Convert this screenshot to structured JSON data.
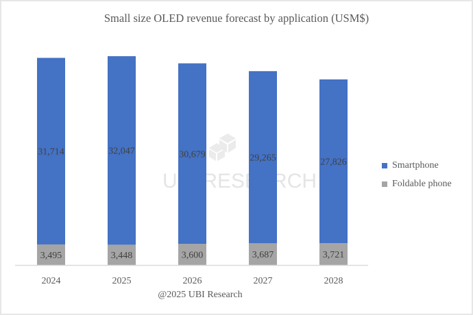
{
  "chart_data": {
    "type": "bar",
    "stacked": true,
    "title": "Small size OLED revenue forecast by application (USM$)",
    "xlabel": "",
    "ylabel": "",
    "categories": [
      "2024",
      "2025",
      "2026",
      "2027",
      "2028"
    ],
    "series": [
      {
        "name": "Foldable phone",
        "color": "#a5a5a5",
        "values": [
          3495,
          3448,
          3600,
          3687,
          3721
        ],
        "labels": [
          "3,495",
          "3,448",
          "3,600",
          "3,687",
          "3,721"
        ]
      },
      {
        "name": "Smartphone",
        "color": "#4472c4",
        "values": [
          31714,
          32047,
          30679,
          29265,
          27826
        ],
        "labels": [
          "31,714",
          "32,047",
          "30,679",
          "29,265",
          "27,826"
        ]
      }
    ],
    "ylim": [
      0,
      35500
    ],
    "grid": false,
    "y_axis_visible": false,
    "legend_position": "right",
    "legend": [
      "Smartphone",
      "Foldable phone"
    ],
    "annotation": "@2025 UBI Research",
    "watermark": "UBI RESEARCH"
  }
}
